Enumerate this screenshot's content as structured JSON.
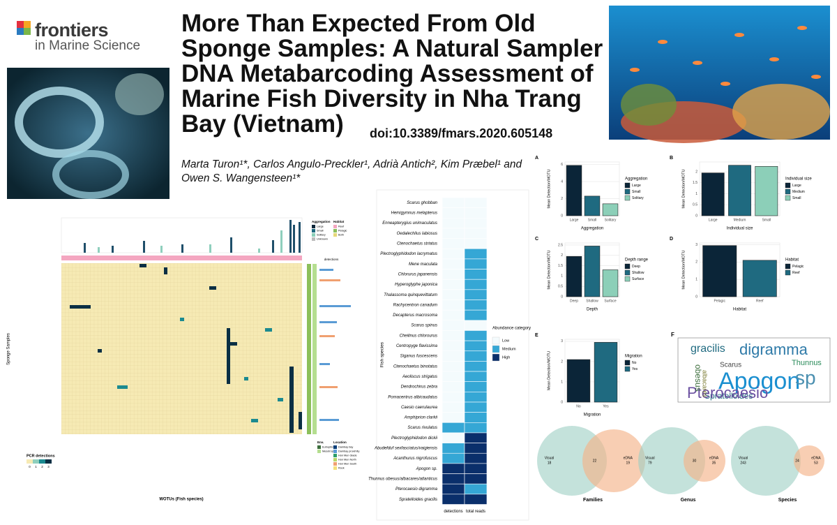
{
  "logo": {
    "name": "frontiers",
    "journal": "in Marine Science"
  },
  "title": "More Than Expected From Old Sponge Samples: A Natural Sampler DNA Metabarcoding Assessment of Marine Fish Diversity in Nha Trang Bay (Vietnam)",
  "doi": "doi:10.3389/fmars.2020.605148",
  "authors": "Marta Turon¹*, Carlos Angulo-Preckler¹, Adrià Antich², Kim Præbel¹ and Owen S. Wangensteen¹*",
  "detection_heatmap": {
    "x_label": "WOTUs (Fish species)",
    "y_label": "Sponge Samples",
    "side_axis": "detections",
    "legend_title": "PCR detections",
    "legend_ticks": [
      0,
      1,
      2,
      3
    ],
    "legends": [
      {
        "title": "Aggregation",
        "items": [
          "Large",
          "Small",
          "Solitary",
          "Unknown"
        ]
      },
      {
        "title": "Habitat",
        "items": [
          "Reef",
          "Pelagic",
          "Both"
        ]
      },
      {
        "title": "Env.",
        "items": [
          "Eutrophic",
          "Mesotrophic"
        ]
      },
      {
        "title": "Location",
        "items": [
          "Dambay bay",
          "Dambay proximity",
          "Hon Mun Glade",
          "Hon Mun North",
          "Hon Mun South",
          "Rock"
        ]
      }
    ]
  },
  "species_heatmap": {
    "y_label": "Fish species",
    "columns": [
      "detections",
      "total reads"
    ],
    "legend_title": "Abundance category",
    "levels": [
      "Low",
      "Medium",
      "High"
    ],
    "colors": [
      "#f4fbfd",
      "#35a7d5",
      "#0a2f6b"
    ],
    "rows": [
      {
        "species": "Scarus ghobban",
        "cells": [
          0,
          0
        ]
      },
      {
        "species": "Hemigymnus melapterus",
        "cells": [
          0,
          0
        ]
      },
      {
        "species": "Enneapterygius unimaculatus",
        "cells": [
          0,
          0
        ]
      },
      {
        "species": "Oedalechilus labiosus",
        "cells": [
          0,
          0
        ]
      },
      {
        "species": "Ctenochaetus striatus",
        "cells": [
          0,
          0
        ]
      },
      {
        "species": "Plectroglyphidodon lacrymatus",
        "cells": [
          0,
          1
        ]
      },
      {
        "species": "Mene maculata",
        "cells": [
          0,
          1
        ]
      },
      {
        "species": "Chlorurus japanensis",
        "cells": [
          0,
          1
        ]
      },
      {
        "species": "Hyperoglyphe japonica",
        "cells": [
          0,
          1
        ]
      },
      {
        "species": "Thalassoma quinquevittatum",
        "cells": [
          0,
          1
        ]
      },
      {
        "species": "Rachycentron canadum",
        "cells": [
          0,
          1
        ]
      },
      {
        "species": "Decapterus macrosoma",
        "cells": [
          0,
          1
        ]
      },
      {
        "species": "Scarus spinus",
        "cells": [
          0,
          0
        ]
      },
      {
        "species": "Cheilinus chlorourus",
        "cells": [
          0,
          1
        ]
      },
      {
        "species": "Centropyge flavissima",
        "cells": [
          0,
          1
        ]
      },
      {
        "species": "Siganus fuscescens",
        "cells": [
          0,
          1
        ]
      },
      {
        "species": "Ctenochaetus binotatus",
        "cells": [
          0,
          1
        ]
      },
      {
        "species": "Aeoliscus strigatus",
        "cells": [
          0,
          1
        ]
      },
      {
        "species": "Dendrochirus zebra",
        "cells": [
          0,
          1
        ]
      },
      {
        "species": "Pomacentrus albicaudatus",
        "cells": [
          0,
          1
        ]
      },
      {
        "species": "Caesio caerulaurea",
        "cells": [
          0,
          1
        ]
      },
      {
        "species": "Amphiprion clarkii",
        "cells": [
          0,
          1
        ]
      },
      {
        "species": "Scarus rivulatus",
        "cells": [
          1,
          1
        ]
      },
      {
        "species": "Plectroglyphidodon dickii",
        "cells": [
          0,
          2
        ]
      },
      {
        "species": "Abudefduf sexfasciatus/vaigiensis",
        "cells": [
          1,
          2
        ]
      },
      {
        "species": "Acanthurus nigrofuscus",
        "cells": [
          1,
          2
        ]
      },
      {
        "species": "Apogon sp.",
        "cells": [
          2,
          2
        ]
      },
      {
        "species": "Thunnus obesus/albacares/atlanticus",
        "cells": [
          2,
          2
        ]
      },
      {
        "species": "Pterocaesio digramma",
        "cells": [
          2,
          1
        ]
      },
      {
        "species": "Spratelloides gracilis",
        "cells": [
          2,
          2
        ]
      }
    ]
  },
  "bar_panels": [
    {
      "letter": "A",
      "y_label": "Mean Detection/MOTU",
      "x_label": "Aggregation",
      "legend_title": "Aggregation",
      "categories": [
        "Large",
        "Small",
        "Solitary"
      ],
      "values": [
        5.9,
        2.3,
        1.4
      ],
      "colors": [
        "#0b2538",
        "#1f6a80",
        "#8ccfb8"
      ],
      "ylim": [
        0,
        6.3
      ],
      "yticks": [
        0,
        2,
        4,
        6
      ]
    },
    {
      "letter": "B",
      "y_label": "Mean Detection/MOTU",
      "x_label": "Individual size",
      "legend_title": "Individual size",
      "categories": [
        "Large",
        "Medium",
        "Small"
      ],
      "values": [
        1.95,
        2.3,
        2.25
      ],
      "colors": [
        "#0b2538",
        "#1f6a80",
        "#8ccfb8"
      ],
      "ylim": [
        0,
        2.45
      ],
      "yticks": [
        0,
        0.5,
        1,
        1.5,
        2
      ]
    },
    {
      "letter": "C",
      "y_label": "Mean Detection/MOTU",
      "x_label": "Depth",
      "legend_title": "Depth range",
      "categories": [
        "Deep",
        "Shallow",
        "Surface"
      ],
      "values": [
        1.95,
        2.45,
        1.3
      ],
      "colors": [
        "#0b2538",
        "#1f6a80",
        "#8ccfb8"
      ],
      "ylim": [
        0,
        2.6
      ],
      "yticks": [
        0,
        0.5,
        1,
        1.5,
        2,
        2.5
      ]
    },
    {
      "letter": "D",
      "y_label": "Mean Detection/MOTU",
      "x_label": "Habitat",
      "legend_title": "Habitat",
      "categories": [
        "Pelagic",
        "Reef"
      ],
      "values": [
        2.95,
        2.1
      ],
      "colors": [
        "#0b2538",
        "#1f6a80"
      ],
      "ylim": [
        0,
        3.1
      ],
      "yticks": [
        0,
        1,
        2,
        3
      ]
    },
    {
      "letter": "E",
      "y_label": "Mean Detection/MOTU",
      "x_label": "Migration",
      "legend_title": "Migration",
      "categories": [
        "No",
        "Yes"
      ],
      "values": [
        2.1,
        2.95
      ],
      "colors": [
        "#0b2538",
        "#1f6a80"
      ],
      "ylim": [
        0,
        3.1
      ],
      "yticks": [
        0,
        1,
        2,
        3
      ]
    }
  ],
  "wordcloud": {
    "letter": "F",
    "words": [
      "gracilis",
      "digramma",
      "Thunnus",
      "Scarus",
      "Apogon",
      "sp",
      "Spratelloides",
      "Pterocaesio",
      "obesus",
      "albacares"
    ]
  },
  "venns": [
    {
      "title": "Families",
      "left_label": "Visual",
      "right_label": "eDNA",
      "left": 18,
      "both": 22,
      "right": 19
    },
    {
      "title": "Genus",
      "left_label": "Visual",
      "right_label": "eDNA",
      "left": 79,
      "both": 30,
      "right": 35
    },
    {
      "title": "Species",
      "left_label": "Visual",
      "right_label": "eDNA",
      "left": 243,
      "both": 24,
      "right": 53
    }
  ]
}
